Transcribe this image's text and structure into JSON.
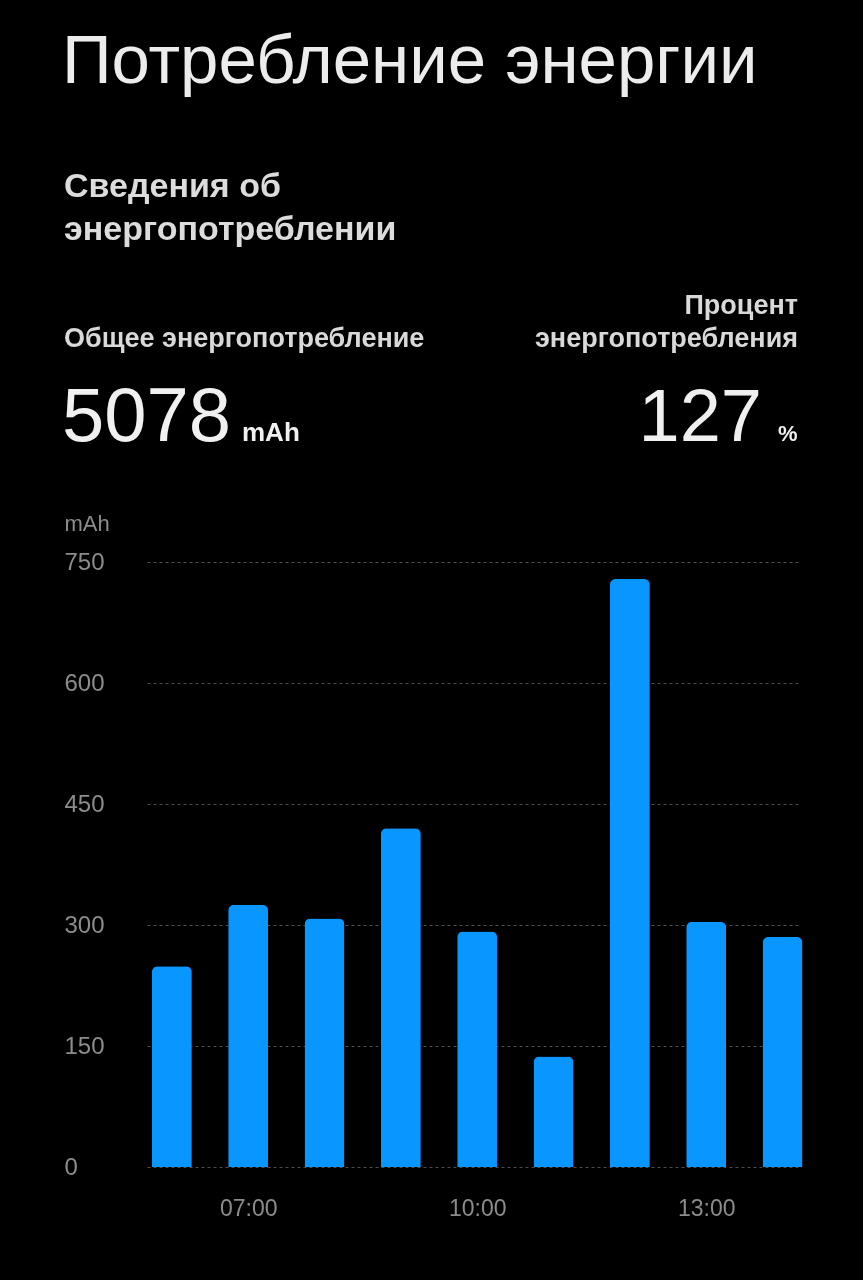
{
  "chart_data": {
    "type": "bar",
    "title": "Потребление энергии",
    "subtitle": "Сведения об энергопотреблении",
    "ylabel": "mAh",
    "annotations": [
      "Общее энергопотребление",
      "5078",
      "mAh",
      "Процент энергопотребления",
      "127",
      "%"
    ],
    "x": [
      6,
      7,
      8,
      9,
      10,
      11,
      12,
      13,
      14
    ],
    "values": [
      249,
      325,
      308,
      420,
      292,
      137,
      729,
      304,
      285
    ],
    "color": "#0a96ff",
    "xlim": [
      5.74,
      14.15
    ],
    "xticks": [
      {
        "value": 7,
        "label": "07:00"
      },
      {
        "value": 10,
        "label": "10:00"
      },
      {
        "value": 13,
        "label": "13:00"
      }
    ],
    "ylim": [
      0,
      750
    ],
    "yticks": [
      0,
      150,
      300,
      450,
      600,
      750
    ],
    "grid": "y"
  }
}
